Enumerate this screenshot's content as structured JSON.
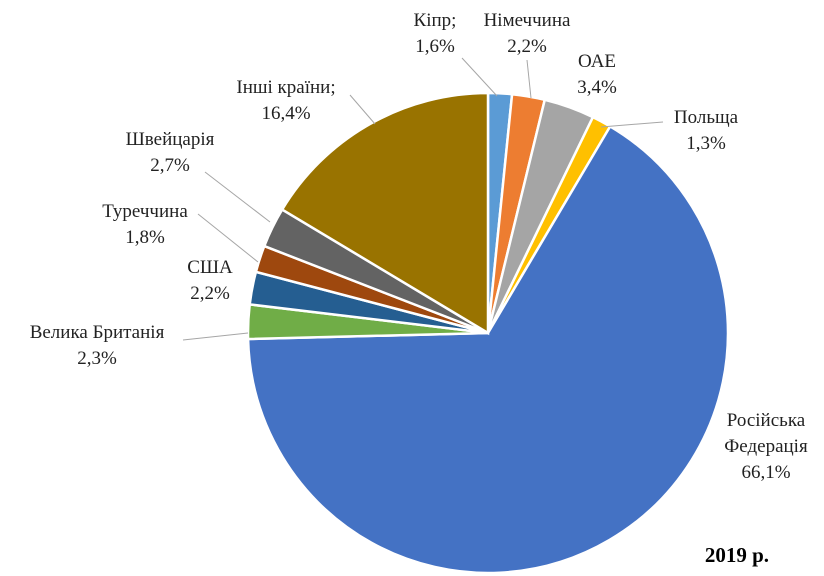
{
  "chart_data": {
    "type": "pie",
    "title": "2019 р.",
    "categories": [
      "Кіпр;",
      "Німеччина",
      "ОАЕ",
      "Польща",
      "Російська Федерація",
      "Велика Британія",
      "США",
      "Туреччина",
      "Швейцарія",
      "Інші країни;"
    ],
    "values": [
      1.6,
      2.2,
      3.4,
      1.3,
      66.1,
      2.3,
      2.2,
      1.8,
      2.7,
      16.4
    ],
    "value_labels": [
      "1,6%",
      "2,2%",
      "3,4%",
      "1,3%",
      "66,1%",
      "2,3%",
      "2,2%",
      "1,8%",
      "2,7%",
      "16,4%"
    ],
    "colors": [
      "#5b9bd5",
      "#ed7d31",
      "#a5a5a5",
      "#ffc000",
      "#4472c4",
      "#70ad47",
      "#255e91",
      "#9e480e",
      "#636363",
      "#997300"
    ]
  }
}
